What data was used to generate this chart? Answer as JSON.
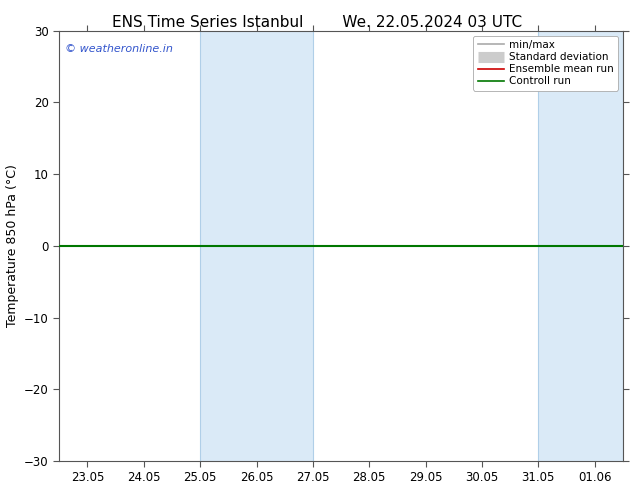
{
  "title": "ENS Time Series Istanbul",
  "title_right": "We. 22.05.2024 03 UTC",
  "ylabel": "Temperature 850 hPa (°C)",
  "ylim": [
    -30,
    30
  ],
  "yticks": [
    -30,
    -20,
    -10,
    0,
    10,
    20,
    30
  ],
  "xtick_labels": [
    "23.05",
    "24.05",
    "25.05",
    "26.05",
    "27.05",
    "28.05",
    "29.05",
    "30.05",
    "31.05",
    "01.06"
  ],
  "bg_color": "#ffffff",
  "plot_bg_color": "#ffffff",
  "shade_bands": [
    {
      "xstart": 2,
      "xend": 4
    },
    {
      "xstart": 8,
      "xend": 9.5
    }
  ],
  "shade_color": "#daeaf7",
  "shade_edge_color": "#b0cfe8",
  "hline_y": 0,
  "hline_color": "#007700",
  "hline_lw": 1.5,
  "watermark": "© weatheronline.in",
  "watermark_color": "#3355cc",
  "legend_items": [
    {
      "label": "min/max",
      "color": "#aaaaaa",
      "lw": 1.2,
      "type": "line"
    },
    {
      "label": "Standard deviation",
      "color": "#cccccc",
      "lw": 8,
      "type": "band"
    },
    {
      "label": "Ensemble mean run",
      "color": "#cc0000",
      "lw": 1.2,
      "type": "line"
    },
    {
      "label": "Controll run",
      "color": "#007700",
      "lw": 1.2,
      "type": "line"
    }
  ],
  "spine_color": "#555555",
  "tick_label_fontsize": 8.5,
  "ylabel_fontsize": 9,
  "title_fontsize": 11,
  "legend_fontsize": 7.5
}
